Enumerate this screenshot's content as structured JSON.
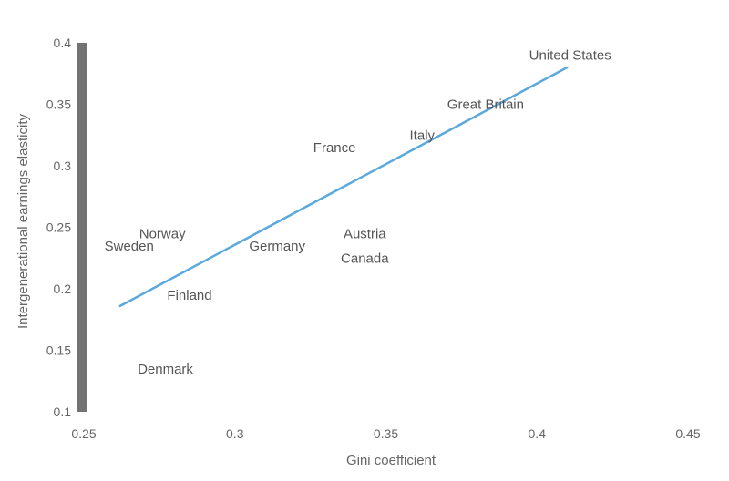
{
  "chart_data": {
    "type": "scatter",
    "title": "",
    "xlabel": "Gini coefficient",
    "ylabel": "Intergenerational earnings elasticity",
    "xlim": [
      0.25,
      0.45
    ],
    "ylim": [
      0.1,
      0.4
    ],
    "x_ticks": [
      "0.25",
      "0.3",
      "0.35",
      "0.4",
      "0.45"
    ],
    "y_ticks": [
      "0.4",
      "0.35",
      "0.3",
      "0.25",
      "0.2",
      "0.15",
      "0.1"
    ],
    "grid": false,
    "points": [
      {
        "label": "United States",
        "x": 0.411,
        "y": 0.39
      },
      {
        "label": "Great Britain",
        "x": 0.383,
        "y": 0.35
      },
      {
        "label": "Italy",
        "x": 0.362,
        "y": 0.325
      },
      {
        "label": "France",
        "x": 0.333,
        "y": 0.315
      },
      {
        "label": "Norway",
        "x": 0.276,
        "y": 0.245
      },
      {
        "label": "Sweden",
        "x": 0.265,
        "y": 0.235
      },
      {
        "label": "Germany",
        "x": 0.314,
        "y": 0.235
      },
      {
        "label": "Austria",
        "x": 0.343,
        "y": 0.245
      },
      {
        "label": "Canada",
        "x": 0.343,
        "y": 0.225
      },
      {
        "label": "Finland",
        "x": 0.285,
        "y": 0.195
      },
      {
        "label": "Denmark",
        "x": 0.277,
        "y": 0.135
      }
    ],
    "trendline": {
      "x": [
        0.262,
        0.41
      ],
      "y": [
        0.186,
        0.38
      ],
      "color": "#5aa9dd"
    },
    "y_axis_color": "#737373"
  }
}
